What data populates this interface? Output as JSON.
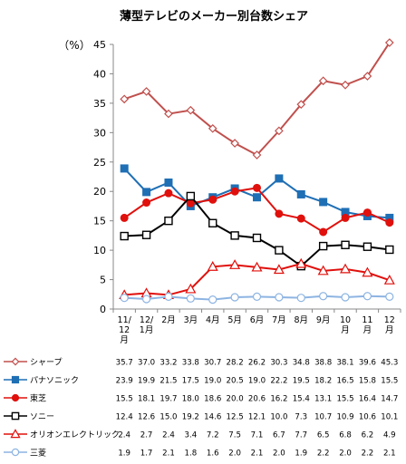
{
  "chart_data": {
    "type": "line",
    "title": "薄型テレビのメーカー別台数シェア",
    "ylabel": "（%）",
    "ylim": [
      0,
      45
    ],
    "yticks": [
      0,
      5,
      10,
      15,
      20,
      25,
      30,
      35,
      40,
      45
    ],
    "grid": false,
    "legend": "table-below",
    "categories": [
      "11/12月",
      "12/1月",
      "2月",
      "3月",
      "4月",
      "5月",
      "6月",
      "7月",
      "8月",
      "9月",
      "10月",
      "11月",
      "12月"
    ],
    "category_lines": [
      [
        "11/",
        "12",
        "月"
      ],
      [
        "12/",
        "1月"
      ],
      [
        "2月"
      ],
      [
        "3月"
      ],
      [
        "4月"
      ],
      [
        "5月"
      ],
      [
        "6月"
      ],
      [
        "7月"
      ],
      [
        "8月"
      ],
      [
        "9月"
      ],
      [
        "10",
        "月"
      ],
      [
        "11",
        "月"
      ],
      [
        "12",
        "月"
      ]
    ],
    "series": [
      {
        "name": "シャープ",
        "color": "#c0504d",
        "marker": "diamond-open",
        "values": [
          35.7,
          37.0,
          33.2,
          33.8,
          30.7,
          28.2,
          26.2,
          30.3,
          34.8,
          38.8,
          38.1,
          39.6,
          45.3
        ]
      },
      {
        "name": "パナソニック",
        "color": "#1f6fb5",
        "marker": "square-filled",
        "values": [
          23.9,
          19.9,
          21.5,
          17.5,
          19.0,
          20.5,
          19.0,
          22.2,
          19.5,
          18.2,
          16.5,
          15.8,
          15.5
        ]
      },
      {
        "name": "東芝",
        "color": "#e0100c",
        "marker": "circle-filled",
        "values": [
          15.5,
          18.1,
          19.7,
          18.0,
          18.6,
          20.0,
          20.6,
          16.2,
          15.4,
          13.1,
          15.5,
          16.4,
          14.7
        ]
      },
      {
        "name": "ソニー",
        "color": "#000000",
        "marker": "square-open",
        "values": [
          12.4,
          12.6,
          15.0,
          19.2,
          14.6,
          12.5,
          12.1,
          10.0,
          7.3,
          10.7,
          10.9,
          10.6,
          10.1
        ]
      },
      {
        "name": "オリオンエレクトリック",
        "color": "#e0100c",
        "marker": "triangle-open",
        "values": [
          2.4,
          2.7,
          2.4,
          3.4,
          7.2,
          7.5,
          7.1,
          6.7,
          7.7,
          6.5,
          6.8,
          6.2,
          4.9
        ]
      },
      {
        "name": "三菱",
        "color": "#8db4e2",
        "marker": "circle-open",
        "values": [
          1.9,
          1.7,
          2.1,
          1.8,
          1.6,
          2.0,
          2.1,
          2.0,
          1.9,
          2.2,
          2.0,
          2.2,
          2.1
        ]
      }
    ]
  }
}
